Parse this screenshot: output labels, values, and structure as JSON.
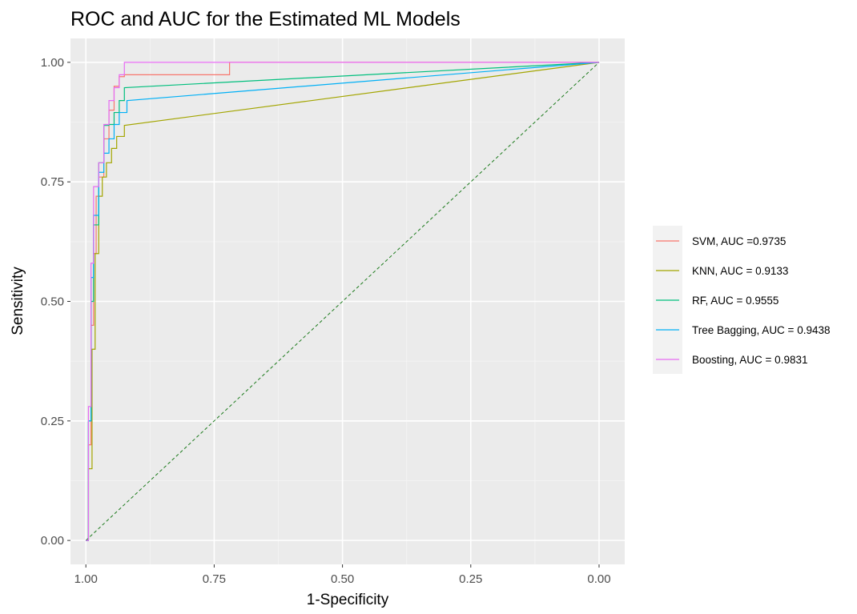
{
  "chart_data": {
    "type": "line",
    "title": "ROC and AUC for the Estimated ML Models",
    "xlabel": "1-Specificity",
    "ylabel": "Sensitivity",
    "x_reversed": true,
    "xlim": [
      1.03,
      -0.05
    ],
    "ylim": [
      -0.05,
      1.05
    ],
    "x_ticks": [
      1.0,
      0.75,
      0.5,
      0.25,
      0.0
    ],
    "x_tick_labels": [
      "1.00",
      "0.75",
      "0.50",
      "0.25",
      "0.00"
    ],
    "y_ticks": [
      0.0,
      0.25,
      0.5,
      0.75,
      1.0
    ],
    "y_tick_labels": [
      "0.00",
      "0.25",
      "0.50",
      "0.75",
      "1.00"
    ],
    "grid": true,
    "legend_position": "right",
    "background": "#ebebeb",
    "reference_line": {
      "x": [
        1.0,
        0.0
      ],
      "y": [
        0.0,
        1.0
      ],
      "color": "#1b7a1b",
      "style": "dashed"
    },
    "series": [
      {
        "name": "SVM, AUC =0.9735",
        "color": "#F8766D",
        "x": [
          1.0,
          0.995,
          0.995,
          0.99,
          0.99,
          0.985,
          0.985,
          0.98,
          0.98,
          0.975,
          0.975,
          0.965,
          0.965,
          0.955,
          0.955,
          0.945,
          0.945,
          0.935,
          0.935,
          0.925,
          0.925,
          0.72,
          0.72,
          0.0
        ],
        "y": [
          0.0,
          0.0,
          0.2,
          0.2,
          0.45,
          0.45,
          0.6,
          0.6,
          0.72,
          0.72,
          0.76,
          0.76,
          0.84,
          0.84,
          0.9,
          0.9,
          0.95,
          0.95,
          0.97,
          0.97,
          0.974,
          0.974,
          1.0,
          1.0
        ]
      },
      {
        "name": "KNN, AUC = 0.9133",
        "color": "#A3A500",
        "x": [
          1.0,
          0.995,
          0.995,
          0.988,
          0.988,
          0.982,
          0.982,
          0.975,
          0.975,
          0.968,
          0.968,
          0.96,
          0.96,
          0.95,
          0.95,
          0.94,
          0.94,
          0.925,
          0.925,
          0.0
        ],
        "y": [
          0.0,
          0.0,
          0.15,
          0.15,
          0.4,
          0.4,
          0.6,
          0.6,
          0.72,
          0.72,
          0.76,
          0.76,
          0.79,
          0.79,
          0.82,
          0.82,
          0.845,
          0.845,
          0.868,
          1.0
        ]
      },
      {
        "name": "RF, AUC = 0.9555",
        "color": "#00BF7D",
        "x": [
          1.0,
          0.995,
          0.995,
          0.99,
          0.99,
          0.985,
          0.985,
          0.975,
          0.975,
          0.965,
          0.965,
          0.955,
          0.955,
          0.945,
          0.945,
          0.935,
          0.935,
          0.925,
          0.925,
          0.0
        ],
        "y": [
          0.0,
          0.0,
          0.25,
          0.25,
          0.5,
          0.5,
          0.66,
          0.66,
          0.79,
          0.79,
          0.868,
          0.868,
          0.87,
          0.87,
          0.895,
          0.895,
          0.92,
          0.92,
          0.947,
          1.0
        ]
      },
      {
        "name": "Tree Bagging, AUC = 0.9438",
        "color": "#00B0F6",
        "x": [
          1.0,
          0.995,
          0.995,
          0.99,
          0.99,
          0.985,
          0.985,
          0.975,
          0.975,
          0.965,
          0.965,
          0.955,
          0.955,
          0.945,
          0.945,
          0.935,
          0.935,
          0.92,
          0.92,
          0.0
        ],
        "y": [
          0.0,
          0.0,
          0.25,
          0.25,
          0.55,
          0.55,
          0.68,
          0.68,
          0.77,
          0.77,
          0.81,
          0.81,
          0.84,
          0.84,
          0.87,
          0.87,
          0.895,
          0.895,
          0.92,
          1.0
        ]
      },
      {
        "name": "Boosting, AUC = 0.9831",
        "color": "#E76BF3",
        "x": [
          1.0,
          0.995,
          0.995,
          0.99,
          0.99,
          0.985,
          0.985,
          0.975,
          0.975,
          0.965,
          0.965,
          0.955,
          0.955,
          0.945,
          0.945,
          0.935,
          0.935,
          0.925,
          0.925,
          0.0
        ],
        "y": [
          0.0,
          0.0,
          0.28,
          0.28,
          0.58,
          0.58,
          0.74,
          0.74,
          0.79,
          0.79,
          0.87,
          0.87,
          0.92,
          0.92,
          0.947,
          0.947,
          0.974,
          0.974,
          1.0,
          1.0
        ]
      }
    ]
  }
}
